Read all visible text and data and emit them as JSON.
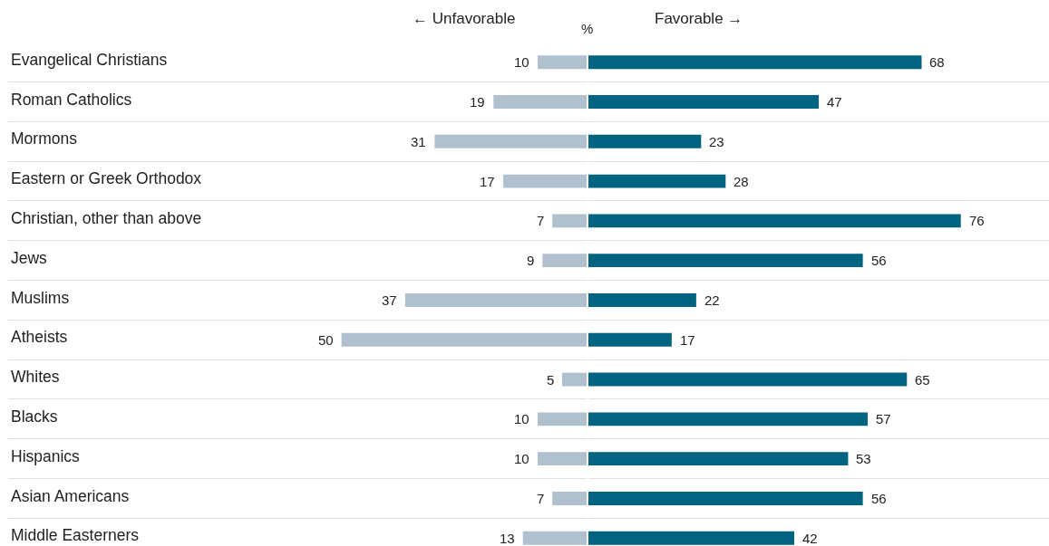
{
  "chart_data": [
    {
      "type": "bar",
      "orientation": "horizontal",
      "xlabel": "%",
      "categories": [
        "Evangelical Christians",
        "Roman Catholics",
        "Mormons",
        "Eastern or Greek Orthodox",
        "Christian, other than above",
        "Jews",
        "Muslims",
        "Atheists",
        "Whites",
        "Blacks",
        "Hispanics",
        "Asian Americans",
        "Middle Easterners"
      ],
      "series": [
        {
          "name": "← Unfavorable",
          "color": "#b0c0cf",
          "values": [
            10,
            19,
            31,
            17,
            7,
            9,
            37,
            50,
            5,
            10,
            10,
            7,
            13
          ]
        }
      ],
      "xlim": [
        118,
        0
      ],
      "tick_labels": "y",
      "grid": "y",
      "data_labels": true
    },
    {
      "type": "bar",
      "orientation": "horizontal",
      "categories": [
        null,
        null,
        null,
        null,
        null,
        null,
        null,
        null,
        null,
        null,
        null,
        null,
        null
      ],
      "series": [
        {
          "name": "Favorable →",
          "color": "#006380",
          "values": [
            68,
            47,
            23,
            28,
            76,
            56,
            22,
            17,
            65,
            57,
            53,
            56,
            42
          ]
        }
      ],
      "xlim": [
        0,
        94
      ],
      "tick_labels": false,
      "grid": "y",
      "data_labels": true
    }
  ]
}
